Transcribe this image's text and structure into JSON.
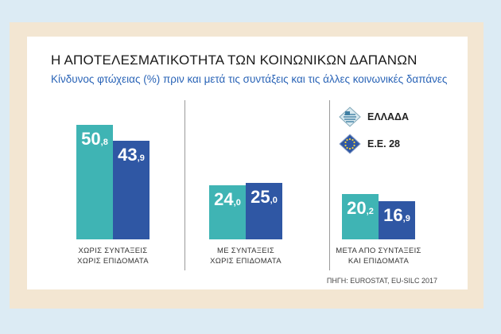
{
  "title": "Η ΑΠΟΤΕΛΕΣΜΑΤΙΚΟΤΗΤΑ ΤΩΝ ΚΟΙΝΩΝΙΚΩΝ ΔΑΠΑΝΩΝ",
  "subtitle": "Κίνδυνος φτώχειας (%) πριν και μετά τις συντάξεις και τις άλλες κοινωνικές δαπάνες",
  "source": "ΠΗΓΗ: EUROSTAT, EU-SILC 2017",
  "colors": {
    "greece": "#3fb4b4",
    "eu28": "#2f57a4"
  },
  "chart_data": {
    "type": "bar",
    "title": "Η ΑΠΟΤΕΛΕΣΜΑΤΙΚΟΤΗΤΑ ΤΩΝ ΚΟΙΝΩΝΙΚΩΝ ΔΑΠΑΝΩΝ",
    "subtitle": "Κίνδυνος φτώχειας (%) πριν και μετά τις συντάξεις και τις άλλες κοινωνικές δαπάνες",
    "categories": [
      [
        "ΧΩΡΙΣ ΣΥΝΤΑΞΕΙΣ",
        "ΧΩΡΙΣ ΕΠΙΔΟΜΑΤΑ"
      ],
      [
        "ΜΕ ΣΥΝΤΑΞΕΙΣ",
        "ΧΩΡΙΣ ΕΠΙΔΟΜΑΤΑ"
      ],
      [
        "ΜΕΤΑ ΑΠΟ ΣΥΝΤΑΞΕΙΣ",
        "ΚΑΙ ΕΠΙΔΟΜΑΤΑ"
      ]
    ],
    "series": [
      {
        "name": "ΕΛΛΑΔΑ",
        "values": [
          50.8,
          24.0,
          20.2
        ],
        "labels": [
          [
            "50",
            ",8"
          ],
          [
            "24",
            ",0"
          ],
          [
            "20",
            ",2"
          ]
        ]
      },
      {
        "name": "Ε.Ε. 28",
        "values": [
          43.9,
          25.0,
          16.9
        ],
        "labels": [
          [
            "43",
            ",9"
          ],
          [
            "25",
            ",0"
          ],
          [
            "16",
            ",9"
          ]
        ]
      }
    ],
    "legend_position": "top-right",
    "grid": false,
    "ylim": [
      0,
      50.8
    ]
  }
}
